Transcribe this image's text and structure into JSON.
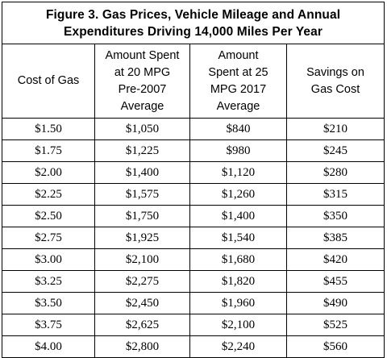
{
  "title": {
    "line1": "Figure 3. Gas Prices, Vehicle Mileage and Annual",
    "line2": "Expenditures Driving 14,000 Miles Per Year"
  },
  "headers": {
    "cost": [
      "Cost of Gas"
    ],
    "pre2007": [
      "Amount Spent",
      "at 20 MPG",
      "Pre-2007",
      "Average"
    ],
    "mpg2017": [
      "Amount",
      "Spent at 25",
      "MPG 2017",
      "Average"
    ],
    "savings": [
      "Savings on",
      "Gas Cost"
    ]
  },
  "rows": [
    [
      "$1.50",
      "$1,050",
      "$840",
      "$210"
    ],
    [
      "$1.75",
      "$1,225",
      "$980",
      "$245"
    ],
    [
      "$2.00",
      "$1,400",
      "$1,120",
      "$280"
    ],
    [
      "$2.25",
      "$1,575",
      "$1,260",
      "$315"
    ],
    [
      "$2.50",
      "$1,750",
      "$1,400",
      "$350"
    ],
    [
      "$2.75",
      "$1,925",
      "$1,540",
      "$385"
    ],
    [
      "$3.00",
      "$2,100",
      "$1,680",
      "$420"
    ],
    [
      "$3.25",
      "$2,275",
      "$1,820",
      "$455"
    ],
    [
      "$3.50",
      "$2,450",
      "$1,960",
      "$490"
    ],
    [
      "$3.75",
      "$2,625",
      "$2,100",
      "$525"
    ],
    [
      "$4.00",
      "$2,800",
      "$2,240",
      "$560"
    ]
  ]
}
